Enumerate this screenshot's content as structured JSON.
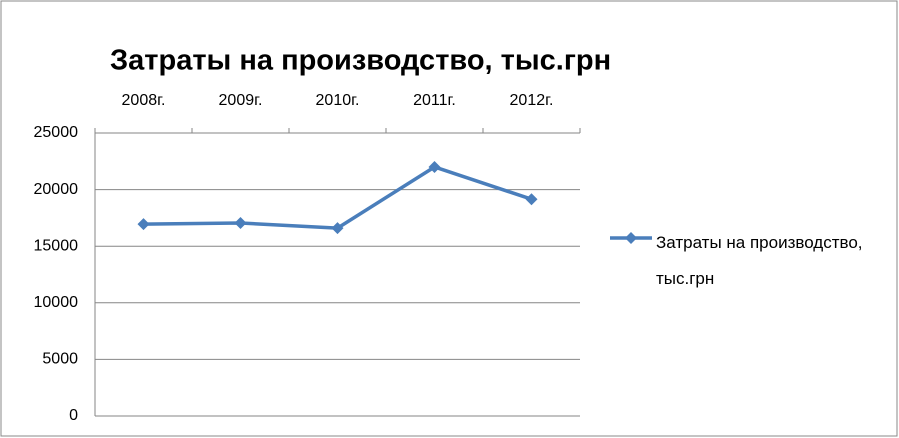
{
  "chart_data": {
    "type": "line",
    "title": "Затраты на производство, тыс.грн",
    "categories": [
      "2008г.",
      "2009г.",
      "2010г.",
      "2011г.",
      "2012г."
    ],
    "series": [
      {
        "name": "Затраты на производство, тыс.грн",
        "color": "#4a7ebb",
        "values": [
          16950,
          17050,
          16600,
          22000,
          19150
        ]
      }
    ],
    "ylim": [
      0,
      25000
    ],
    "yticks": [
      0,
      5000,
      10000,
      15000,
      20000,
      25000
    ],
    "grid": true,
    "legend": "right"
  }
}
